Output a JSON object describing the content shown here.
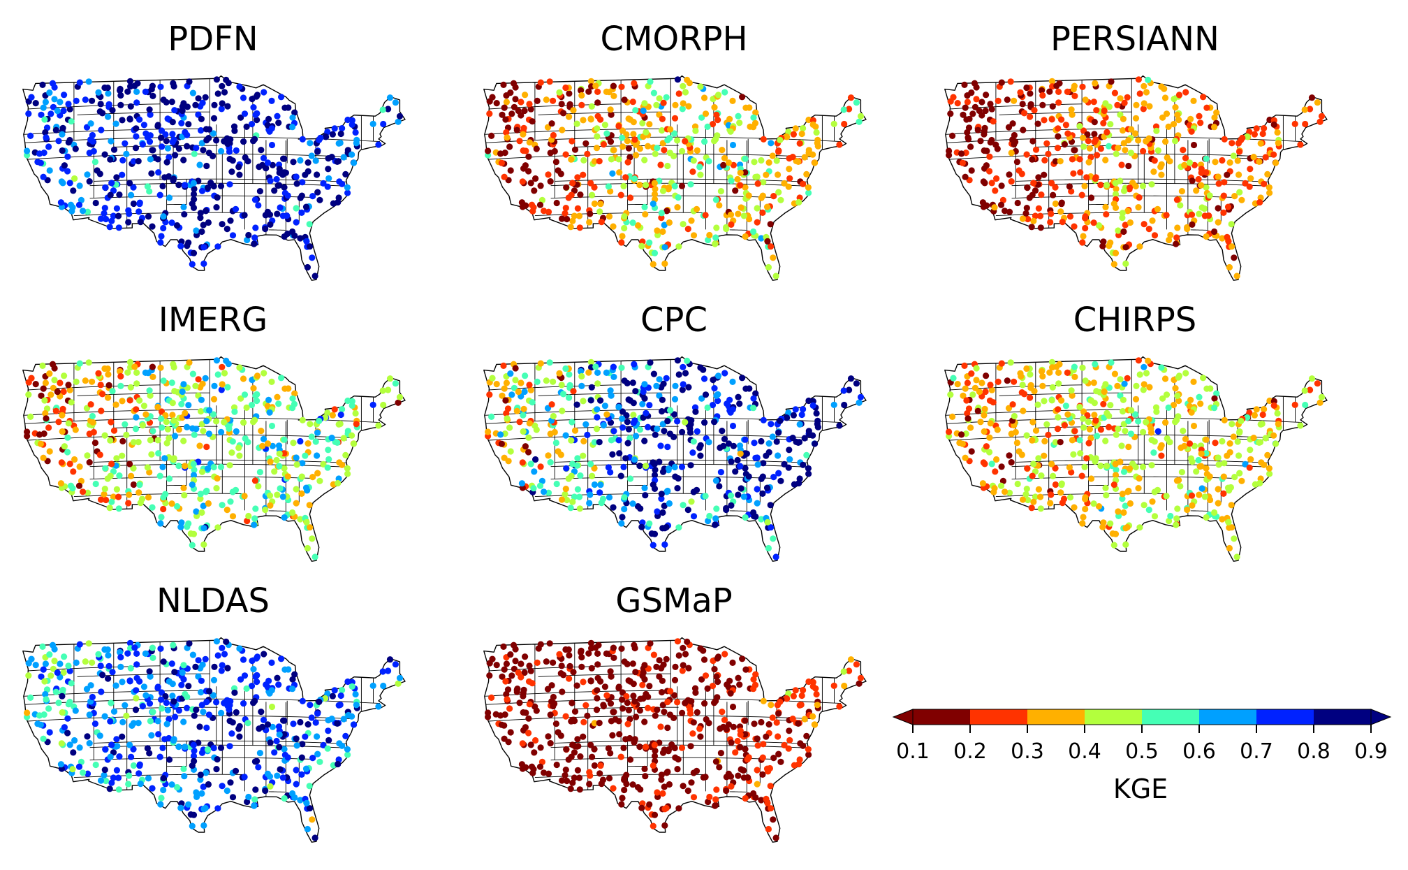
{
  "chart_data": {
    "type": "scatter",
    "description_free": true,
    "panels": [
      {
        "title": "PDFN",
        "kge_profile": {
          "west": 0.72,
          "central": 0.84,
          "east": 0.78,
          "south": 0.74,
          "spread": 0.1
        }
      },
      {
        "title": "CMORPH",
        "kge_profile": {
          "west": 0.15,
          "central": 0.42,
          "east": 0.32,
          "south": 0.45,
          "spread": 0.12
        }
      },
      {
        "title": "PERSIANN",
        "kge_profile": {
          "west": 0.12,
          "central": 0.33,
          "east": 0.25,
          "south": 0.3,
          "spread": 0.08
        }
      },
      {
        "title": "IMERG",
        "kge_profile": {
          "west": 0.3,
          "central": 0.52,
          "east": 0.45,
          "south": 0.52,
          "spread": 0.12
        }
      },
      {
        "title": "CPC",
        "kge_profile": {
          "west": 0.35,
          "central": 0.82,
          "east": 0.84,
          "south": 0.7,
          "spread": 0.16
        }
      },
      {
        "title": "CHIRPS",
        "kge_profile": {
          "west": 0.3,
          "central": 0.42,
          "east": 0.34,
          "south": 0.42,
          "spread": 0.09
        }
      },
      {
        "title": "NLDAS",
        "kge_profile": {
          "west": 0.62,
          "central": 0.74,
          "east": 0.68,
          "south": 0.66,
          "spread": 0.1
        }
      },
      {
        "title": "GSMaP",
        "kge_profile": {
          "west": 0.12,
          "central": 0.13,
          "east": 0.3,
          "south": 0.24,
          "spread": 0.08
        }
      }
    ],
    "colorbar": {
      "label": "KGE",
      "ticks": [
        "0.1",
        "0.2",
        "0.3",
        "0.4",
        "0.5",
        "0.6",
        "0.7",
        "0.8",
        "0.9"
      ],
      "range": [
        0.1,
        0.9
      ],
      "extend": "both",
      "colors": [
        "#800000",
        "#ff3300",
        "#ffb000",
        "#b3ff3d",
        "#45ffb5",
        "#00a0ff",
        "#0022ff",
        "#000080"
      ],
      "under_color": "#800000",
      "over_color": "#000080"
    }
  }
}
